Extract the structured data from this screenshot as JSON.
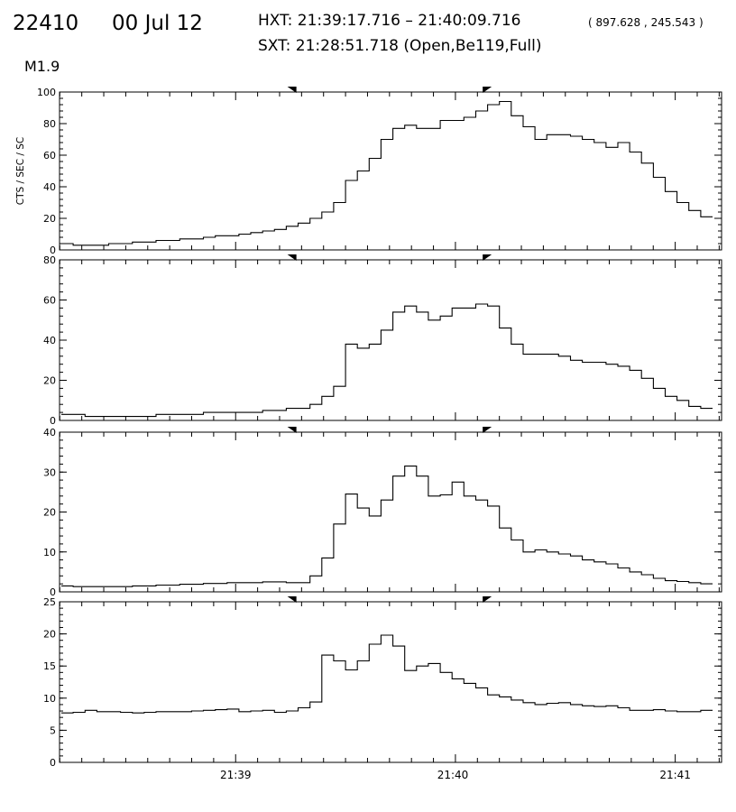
{
  "header": {
    "event_id": "22410",
    "date": "00 Jul 12",
    "hxt_label": "HXT: 21:39:17.716 – 21:40:09.716",
    "coords": "( 897.628 , 245.543 )",
    "sxt_label": "SXT: 21:28:51.718 (Open,Be119,Full)",
    "flare_class": "M1.9"
  },
  "colors": {
    "line": "#000000",
    "background": "#ffffff"
  },
  "chart_data": [
    {
      "type": "line",
      "ylabel": "CTS / SEC / SC",
      "ylim": [
        0,
        100
      ],
      "yticks": [
        0,
        20,
        40,
        60,
        80,
        100
      ],
      "values": [
        4,
        3,
        3,
        3,
        4,
        4,
        5,
        5,
        6,
        6,
        7,
        7,
        8,
        9,
        9,
        10,
        11,
        12,
        13,
        15,
        17,
        20,
        24,
        30,
        44,
        50,
        58,
        70,
        77,
        79,
        77,
        77,
        82,
        82,
        84,
        88,
        92,
        94,
        85,
        78,
        70,
        73,
        73,
        72,
        70,
        68,
        65,
        68,
        62,
        55,
        46,
        37,
        30,
        25,
        21
      ]
    },
    {
      "type": "line",
      "ylabel": "",
      "ylim": [
        0,
        80
      ],
      "yticks": [
        0,
        20,
        40,
        60,
        80
      ],
      "values": [
        3,
        3,
        2,
        2,
        2,
        2,
        2,
        2,
        3,
        3,
        3,
        3,
        4,
        4,
        4,
        4,
        4,
        5,
        5,
        6,
        6,
        8,
        12,
        17,
        38,
        36,
        38,
        45,
        54,
        57,
        54,
        50,
        52,
        56,
        56,
        58,
        57,
        46,
        38,
        33,
        33,
        33,
        32,
        30,
        29,
        29,
        28,
        27,
        25,
        21,
        16,
        12,
        10,
        7,
        6
      ]
    },
    {
      "type": "line",
      "ylabel": "",
      "ylim": [
        0,
        40
      ],
      "yticks": [
        0,
        10,
        20,
        30,
        40
      ],
      "values": [
        1.5,
        1.3,
        1.3,
        1.3,
        1.3,
        1.3,
        1.5,
        1.5,
        1.7,
        1.7,
        1.9,
        1.9,
        2.1,
        2.1,
        2.3,
        2.3,
        2.3,
        2.5,
        2.5,
        2.3,
        2.3,
        4,
        8.5,
        17,
        24.5,
        21,
        19,
        23,
        29,
        31.5,
        29,
        24,
        24.3,
        27.5,
        24,
        23,
        21.5,
        16,
        13,
        10,
        10.5,
        10,
        9.5,
        9,
        8,
        7.5,
        7,
        6,
        5,
        4.3,
        3.4,
        2.8,
        2.6,
        2.3,
        2
      ]
    },
    {
      "type": "line",
      "ylabel": "",
      "ylim": [
        0,
        25
      ],
      "yticks": [
        0,
        5,
        10,
        15,
        20,
        25
      ],
      "values": [
        7.7,
        7.8,
        8.1,
        7.9,
        7.9,
        7.8,
        7.7,
        7.8,
        7.9,
        7.9,
        7.9,
        8,
        8.1,
        8.2,
        8.3,
        7.9,
        8,
        8.1,
        7.8,
        8,
        8.5,
        9.4,
        16.7,
        15.8,
        14.4,
        15.8,
        18.4,
        19.8,
        18.1,
        14.3,
        15,
        15.4,
        14,
        13,
        12.3,
        11.6,
        10.5,
        10.2,
        9.7,
        9.3,
        9,
        9.2,
        9.3,
        9,
        8.8,
        8.7,
        8.8,
        8.5,
        8.1,
        8.1,
        8.2,
        8,
        7.9,
        7.9,
        8.1
      ]
    }
  ],
  "x_axis": {
    "ticks": [
      {
        "label": "21:39",
        "pos": 0.266
      },
      {
        "label": "21:40",
        "pos": 0.594
      },
      {
        "label": "21:41",
        "pos": 0.93
      }
    ],
    "markers": [
      0.351,
      0.646
    ]
  }
}
